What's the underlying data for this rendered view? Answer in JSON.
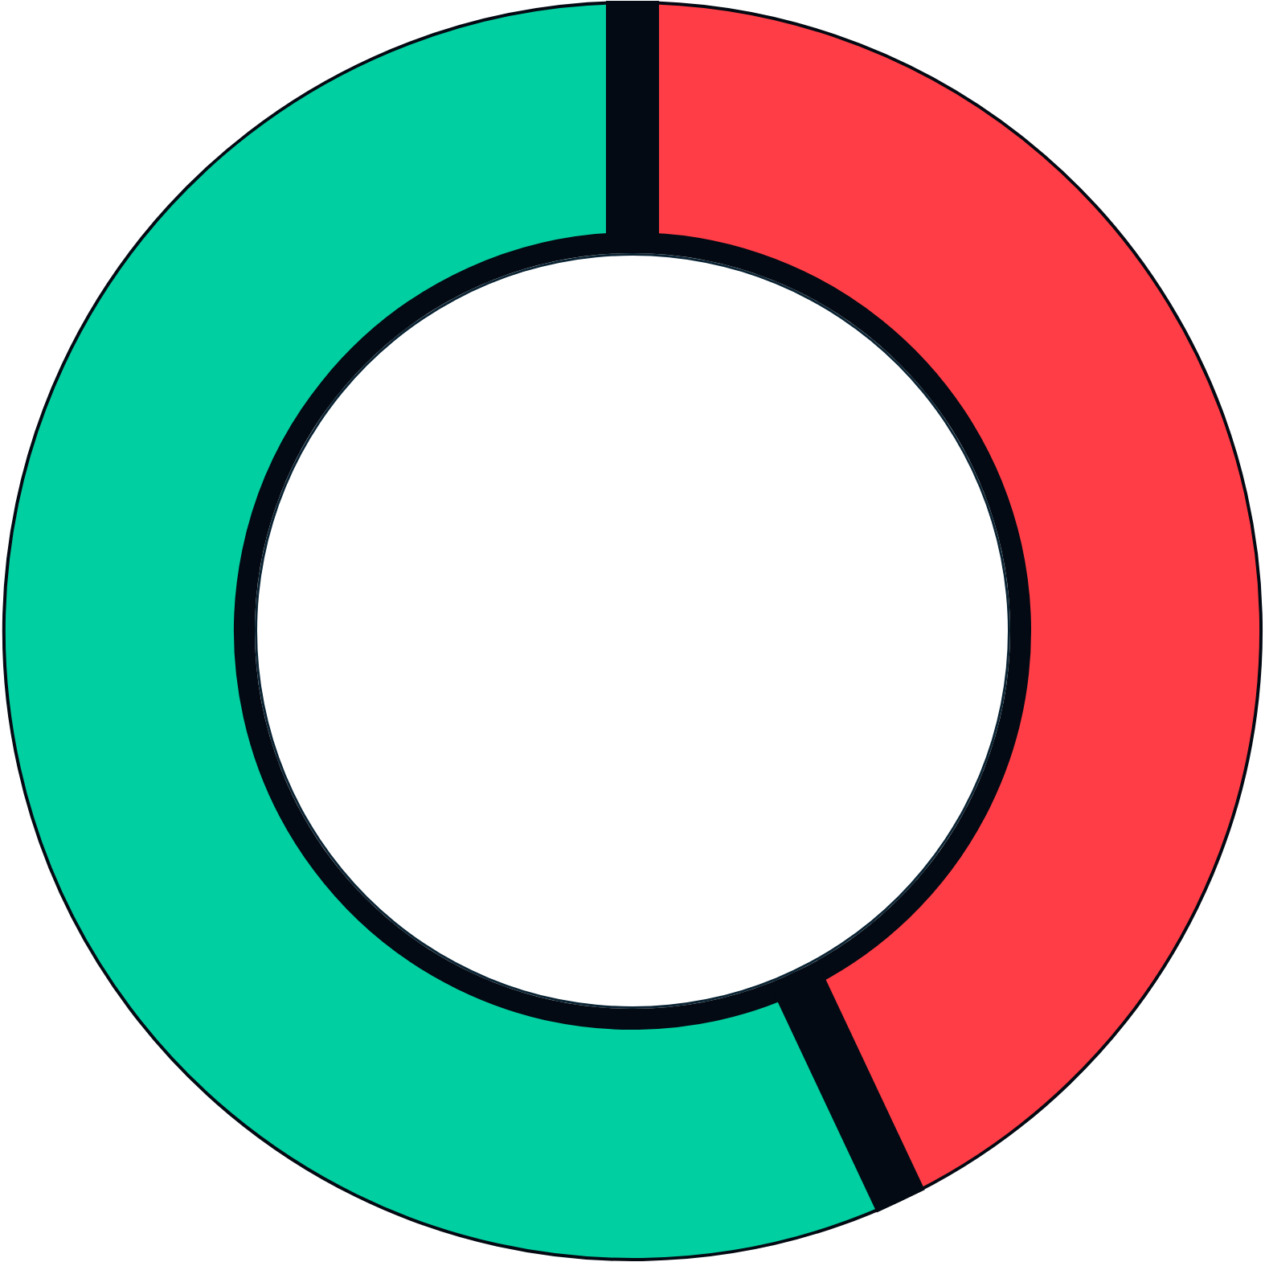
{
  "chart_data": {
    "type": "donut",
    "categories": [
      null,
      null
    ],
    "values": [
      43,
      57
    ],
    "colors": [
      "#ff3d46",
      "#00cfa1"
    ],
    "legend": false
  }
}
